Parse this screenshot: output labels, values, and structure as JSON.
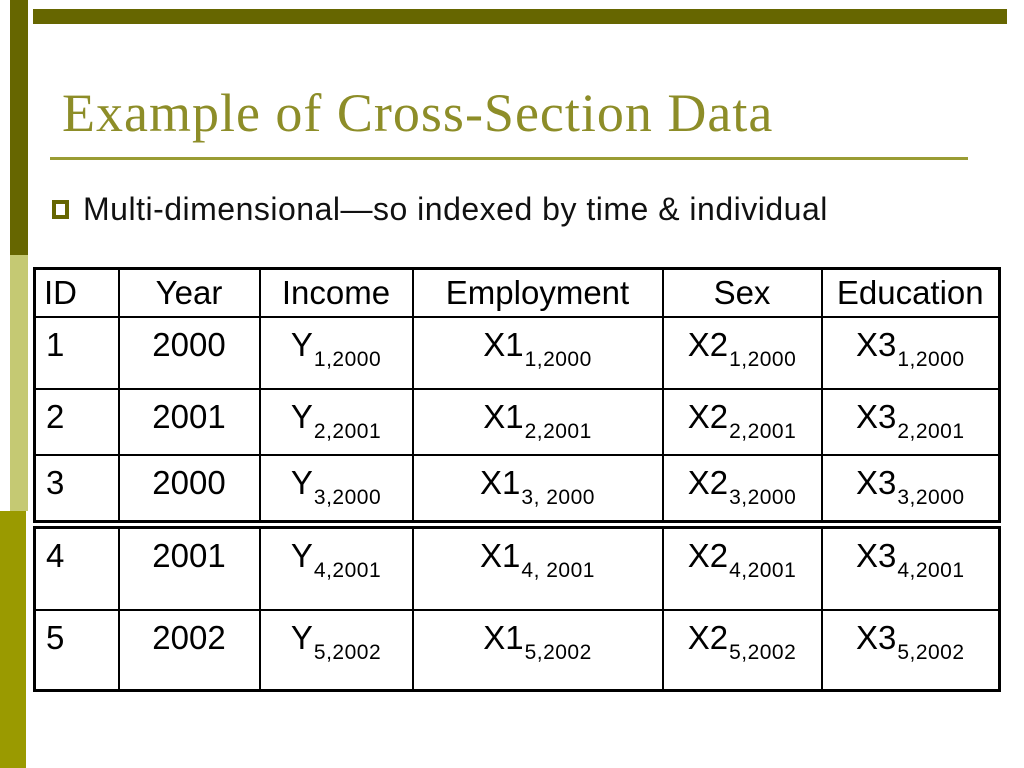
{
  "slide": {
    "title": "Example of Cross-Section Data",
    "bullet_text": "Multi-dimensional—so indexed by time & individual"
  },
  "colors": {
    "dark_olive": "#666600",
    "light_olive": "#c5c973",
    "medium_olive": "#9a9a00",
    "title_olive": "#8d8d28",
    "rule_olive": "#9a9c34",
    "text": "#000000",
    "background": "#ffffff"
  },
  "icons": {
    "bullet": "square-bullet-icon"
  },
  "table": {
    "headers": [
      "ID",
      "Year",
      "Income",
      "Employment",
      "Sex",
      "Education"
    ],
    "rows": [
      {
        "cells": [
          {
            "t": "1"
          },
          {
            "t": "2000"
          },
          {
            "t": "Y",
            "sub": "1,2000"
          },
          {
            "t": "X1",
            "sub": "1,2000"
          },
          {
            "t": "X2",
            "sub": "1,2000"
          },
          {
            "t": "X3",
            "sub": "1,2000"
          }
        ]
      },
      {
        "cells": [
          {
            "t": "2"
          },
          {
            "t": "2001"
          },
          {
            "t": "Y",
            "sub": "2,2001"
          },
          {
            "t": "X1",
            "sub": "2,2001"
          },
          {
            "t": "X2",
            "sub": "2,2001"
          },
          {
            "t": "X3",
            "sub": "2,2001"
          }
        ]
      },
      {
        "cells": [
          {
            "t": "3"
          },
          {
            "t": "2000"
          },
          {
            "t": "Y",
            "sub": "3,2000"
          },
          {
            "t": "X1",
            "sub": "3, 2000"
          },
          {
            "t": "X2",
            "sub": "3,2000"
          },
          {
            "t": "X3",
            "sub": "3,2000"
          }
        ]
      },
      {
        "cells": [
          {
            "t": "4"
          },
          {
            "t": "2001"
          },
          {
            "t": "Y",
            "sub": "4,2001"
          },
          {
            "t": "X1",
            "sub": "4, 2001"
          },
          {
            "t": "X2",
            "sub": "4,2001"
          },
          {
            "t": "X3",
            "sub": "4,2001"
          }
        ]
      },
      {
        "cells": [
          {
            "t": "5"
          },
          {
            "t": "2002"
          },
          {
            "t": "Y",
            "sub": "5,2002"
          },
          {
            "t": "X1",
            "sub": "5,2002"
          },
          {
            "t": "X2",
            "sub": "5,2002"
          },
          {
            "t": "X3",
            "sub": "5,2002"
          }
        ]
      }
    ]
  }
}
